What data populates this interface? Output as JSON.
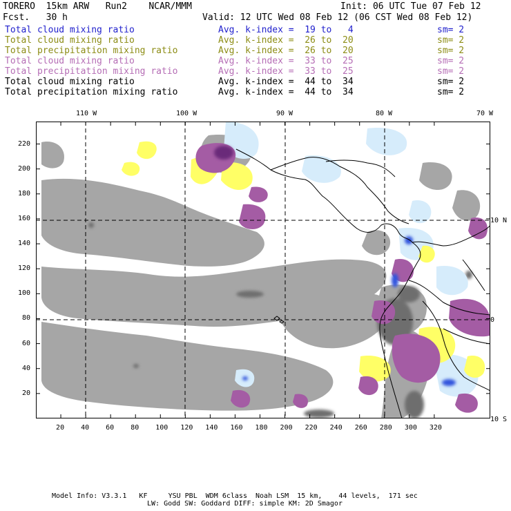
{
  "header": {
    "title": "TORERO  15km ARW   Run2    NCAR/MMM",
    "fcst": "Fcst.   30 h",
    "init": "Init: 06 UTC Tue 07 Feb 12",
    "valid": "Valid: 12 UTC Wed 08 Feb 12 (06 CST Wed 08 Feb 12)"
  },
  "legend": [
    {
      "label": "Total cloud mixing ratio",
      "avg": "Avg. k-index =  19 to   4",
      "sm": "sm= 2",
      "color": "#1f1fcc"
    },
    {
      "label": "Total cloud mixing ratio",
      "avg": "Avg. k-index =  26 to  20",
      "sm": "sm= 2",
      "color": "#8c8c14"
    },
    {
      "label": "Total precipitation mixing ratio",
      "avg": "Avg. k-index =  26 to  20",
      "sm": "sm= 2",
      "color": "#8c8c14"
    },
    {
      "label": "Total cloud mixing ratio",
      "avg": "Avg. k-index =  33 to  25",
      "sm": "sm= 2",
      "color": "#b56db5"
    },
    {
      "label": "Total precipitation mixing ratio",
      "avg": "Avg. k-index =  33 to  25",
      "sm": "sm= 2",
      "color": "#b56db5"
    },
    {
      "label": "Total cloud mixing ratio",
      "avg": "Avg. k-index =  44 to  34",
      "sm": "sm= 2",
      "color": "#000000"
    },
    {
      "label": "Total precipitation mixing ratio",
      "avg": "Avg. k-index =  44 to  34",
      "sm": "sm= 2",
      "color": "#000000"
    }
  ],
  "map": {
    "lon_labels": [
      "110 W",
      "100 W",
      "90 W",
      "80 W",
      "70 W"
    ],
    "lat_labels": [
      "10 N",
      "0",
      "10 S"
    ],
    "x_ticks": [
      "20",
      "40",
      "60",
      "80",
      "100",
      "120",
      "140",
      "160",
      "180",
      "200",
      "220",
      "240",
      "260",
      "280",
      "300",
      "320"
    ],
    "y_ticks": [
      "20",
      "40",
      "60",
      "80",
      "100",
      "120",
      "140",
      "160",
      "180",
      "200",
      "220"
    ],
    "colors": {
      "gray": "#a6a6a6",
      "dark_gray": "#6e6e6e",
      "yellow": "#ffff66",
      "purple": "#a45ca4",
      "dark_purple": "#6a2a7a",
      "light_blue": "#d6ecfb",
      "blue": "#3355dd"
    }
  },
  "footer": {
    "line1": "Model Info: V3.3.1   KF     YSU PBL  WDM 6class  Noah LSM  15 km,    44 levels,  171 sec",
    "line2": "LW: Godd SW: Goddard DIFF: simple KM: 2D Smagor"
  }
}
